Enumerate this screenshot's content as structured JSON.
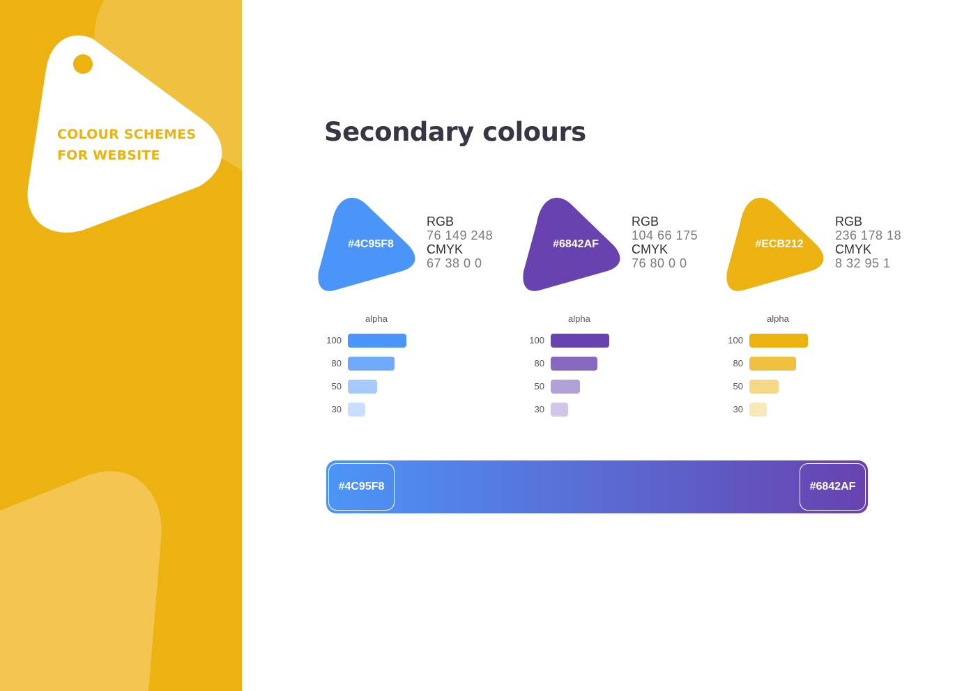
{
  "sidebar": {
    "title_line1": "COLOUR SCHEMES",
    "title_line2": "FOR WEBSITE"
  },
  "page_title": "Secondary colours",
  "colors": [
    {
      "hex": "#4C95F8",
      "rgb_label": "RGB",
      "rgb": "76 149 248",
      "cmyk_label": "CMYK",
      "cmyk": "67 38 0 0",
      "alpha_title": "alpha",
      "alphas": [
        {
          "label": "100",
          "value": 1.0
        },
        {
          "label": "80",
          "value": 0.8
        },
        {
          "label": "50",
          "value": 0.5
        },
        {
          "label": "30",
          "value": 0.3
        }
      ]
    },
    {
      "hex": "#6842AF",
      "rgb_label": "RGB",
      "rgb": "104 66 175",
      "cmyk_label": "CMYK",
      "cmyk": "76 80 0 0",
      "alpha_title": "alpha",
      "alphas": [
        {
          "label": "100",
          "value": 1.0
        },
        {
          "label": "80",
          "value": 0.8
        },
        {
          "label": "50",
          "value": 0.5
        },
        {
          "label": "30",
          "value": 0.3
        }
      ]
    },
    {
      "hex": "#ECB212",
      "rgb_label": "RGB",
      "rgb": "236 178 18",
      "cmyk_label": "CMYK",
      "cmyk": "8 32 95 1",
      "alpha_title": "alpha",
      "alphas": [
        {
          "label": "100",
          "value": 1.0
        },
        {
          "label": "80",
          "value": 0.8
        },
        {
          "label": "50",
          "value": 0.5
        },
        {
          "label": "30",
          "value": 0.3
        }
      ]
    }
  ],
  "gradient": {
    "start": "#4C95F8",
    "end": "#6842AF"
  }
}
